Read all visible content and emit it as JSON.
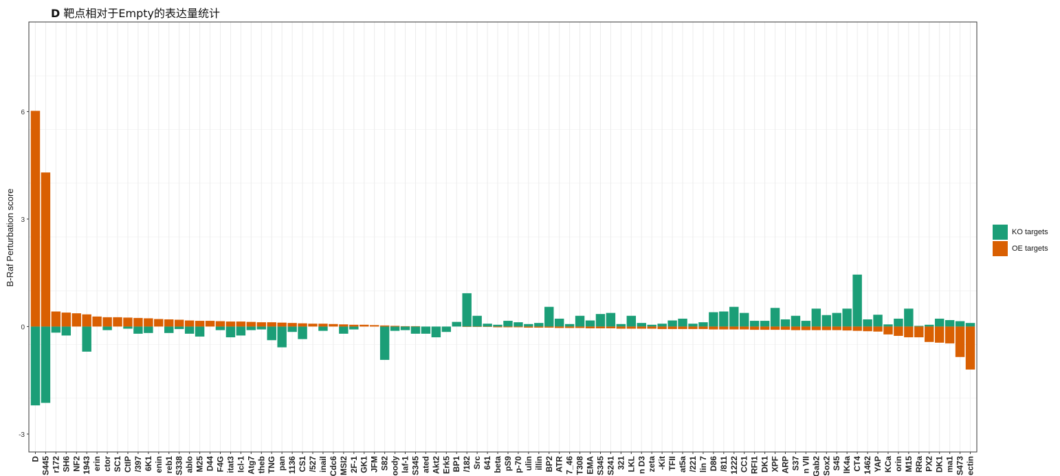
{
  "title": {
    "panel_letter": "D",
    "text": "靶点相对于Empty的表达量统计"
  },
  "colors": {
    "ko": "#1b9e77",
    "oe": "#d95f02",
    "grid": "#ebebeb",
    "panel_border": "#333333"
  },
  "legend": [
    {
      "key": "ko",
      "label": "KO targets"
    },
    {
      "key": "oe",
      "label": "OE targets"
    }
  ],
  "chart_data": {
    "type": "bar",
    "ylabel": "B-Raf Perturbation score",
    "ylim": [
      -3.5,
      8.5
    ],
    "yticks": [
      -3,
      0,
      3,
      6
    ],
    "grid": true,
    "legend_position": "right",
    "categories": [
      "D",
      "S445",
      "r172",
      "SH6",
      "NF2",
      "1943",
      "erin",
      "ctor",
      "SC1",
      "CtIP",
      "/397",
      "6K1",
      "enin",
      "reb1",
      "S338",
      "ablo",
      "M25",
      "D44",
      "F4G",
      "itat3",
      "Icl-1",
      "Atg7",
      "theb",
      "TNG",
      "pan",
      "1136",
      "CS1",
      "/527",
      "inail",
      "Cdc6",
      "MSI2",
      "2F-1",
      "GK1",
      "JFM",
      "S82",
      "oody",
      "laf-1",
      "S345",
      "ated",
      "Akt2",
      "Erk5",
      "BP1",
      "/182",
      "Src",
      "641",
      "beta",
      "pS9",
      "p-70",
      "ulin",
      "illin",
      "BP2",
      "ATR",
      "7_46",
      "T308",
      "EMA",
      "S345",
      "S241",
      "321",
      "LKL",
      "n D3",
      "zeta",
      "-Kit",
      "TFII",
      "at5a",
      "/221",
      "lin 7",
      "D86",
      "/811",
      "1222",
      "CC1",
      "RFI1",
      "DK1",
      "XPF",
      "ARP",
      "S37",
      "n VII",
      "Gab2",
      "Sox2",
      "S45",
      "lK4a",
      "CT4",
      "1462",
      "YAP",
      "KCa",
      "orin",
      "M15",
      "RRa",
      "PX2",
      "DK1",
      "ma1",
      "S473",
      "ectin"
    ],
    "series": [
      {
        "name": "KO targets",
        "key": "ko",
        "values": [
          -2.2,
          -2.13,
          -0.17,
          -0.25,
          0,
          -0.7,
          0,
          -0.1,
          0,
          -0.06,
          -0.2,
          -0.18,
          0,
          -0.18,
          -0.07,
          -0.2,
          -0.28,
          0,
          -0.1,
          -0.3,
          -0.25,
          -0.1,
          -0.08,
          -0.38,
          -0.58,
          -0.15,
          -0.35,
          0,
          -0.12,
          0,
          -0.2,
          -0.08,
          0,
          0,
          -0.93,
          -0.12,
          -0.1,
          -0.2,
          -0.2,
          -0.3,
          -0.15,
          0.13,
          0.93,
          0.3,
          0.08,
          0.05,
          0.16,
          0.12,
          0.07,
          0.1,
          0.55,
          0.22,
          0.07,
          0.3,
          0.17,
          0.35,
          0.38,
          0.07,
          0.3,
          0.1,
          0.05,
          0.08,
          0.17,
          0.22,
          0.08,
          0.12,
          0.4,
          0.42,
          0.55,
          0.38,
          0.16,
          0.16,
          0.52,
          0.2,
          0.3,
          0.16,
          0.5,
          0.32,
          0.38,
          0.5,
          1.45,
          0.2,
          0.33,
          0.06,
          0.22,
          0.5,
          0.02,
          0.05,
          0.22,
          0.18,
          0.15,
          0.1
        ]
      },
      {
        "name": "OE targets",
        "key": "oe",
        "values": [
          6.02,
          4.3,
          0.42,
          0.39,
          0.37,
          0.34,
          0.28,
          0.26,
          0.26,
          0.25,
          0.24,
          0.23,
          0.21,
          0.2,
          0.19,
          0.17,
          0.16,
          0.16,
          0.15,
          0.14,
          0.14,
          0.13,
          0.12,
          0.12,
          0.11,
          0.1,
          0.09,
          0.08,
          0.08,
          0.07,
          0.06,
          0.05,
          0.05,
          0.04,
          0.03,
          0.02,
          0.01,
          0.01,
          0.0,
          0.0,
          0.0,
          0.0,
          -0.01,
          -0.01,
          -0.01,
          -0.02,
          -0.02,
          -0.02,
          -0.03,
          -0.03,
          -0.03,
          -0.04,
          -0.04,
          -0.04,
          -0.05,
          -0.05,
          -0.05,
          -0.06,
          -0.06,
          -0.06,
          -0.06,
          -0.07,
          -0.07,
          -0.07,
          -0.07,
          -0.07,
          -0.08,
          -0.08,
          -0.08,
          -0.08,
          -0.09,
          -0.09,
          -0.09,
          -0.09,
          -0.1,
          -0.1,
          -0.1,
          -0.1,
          -0.1,
          -0.11,
          -0.12,
          -0.13,
          -0.14,
          -0.22,
          -0.26,
          -0.3,
          -0.3,
          -0.43,
          -0.45,
          -0.47,
          -0.85,
          -1.2
        ]
      }
    ]
  }
}
